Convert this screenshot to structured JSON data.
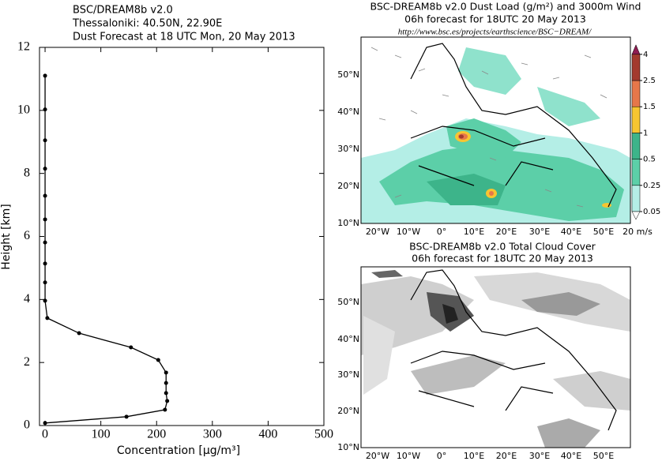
{
  "chart_data": [
    {
      "type": "line",
      "title": [
        "BSC/DREAM8b v2.0",
        "Thessaloniki: 40.50N, 22.90E",
        "Dust Forecast at 18 UTC Mon, 20 May 2013"
      ],
      "xlabel": "Concentration [μg/m³]",
      "ylabel": "Height [km]",
      "xlim": [
        -10,
        500
      ],
      "ylim": [
        0,
        12
      ],
      "xticks": [
        0,
        100,
        200,
        300,
        400,
        500
      ],
      "yticks": [
        0,
        2,
        4,
        6,
        8,
        10,
        12
      ],
      "series": [
        {
          "color": "#000000",
          "x": [
            0,
            146,
            215,
            219,
            217,
            217,
            217,
            203,
            154,
            61,
            4,
            0,
            0,
            0,
            0,
            0,
            0,
            0,
            0,
            0,
            0
          ],
          "values": [
            0.08,
            0.28,
            0.5,
            0.78,
            1.03,
            1.35,
            1.68,
            2.08,
            2.48,
            2.93,
            3.41,
            3.96,
            4.54,
            5.14,
            5.81,
            6.54,
            7.29,
            8.15,
            9.05,
            10.03,
            11.1
          ]
        }
      ]
    },
    {
      "type": "map",
      "title": [
        "BSC-DREAM8b v2.0 Dust Load (g/m²) and 3000m Wind",
        "06h forecast for 18UTC 20 May 2013"
      ],
      "url": "http://www.bsc.es/projects/earthscience/BSC−DREAM/",
      "lon_labels": [
        "20°W",
        "10°W",
        "0°",
        "10°E",
        "20°E",
        "30°E",
        "40°E",
        "50°E"
      ],
      "lat_labels": [
        "10°N",
        "20°N",
        "30°N",
        "40°N",
        "50°N"
      ],
      "levels": [
        0.05,
        0.25,
        0.5,
        1,
        1.5,
        2.5,
        4
      ],
      "colors": [
        "#b4eee6",
        "#5ccfa8",
        "#3db48a",
        "#f7c531",
        "#e6774a",
        "#a33a2e"
      ],
      "over_color": "#8e1c52",
      "under_color": "#ffffff",
      "wind_key": "20 m/s"
    },
    {
      "type": "map",
      "title": [
        "BSC-DREAM8b v2.0 Total Cloud Cover",
        "06h forecast for 18UTC 20 May 2013"
      ],
      "lon_labels": [
        "20°W",
        "10°W",
        "0°",
        "10°E",
        "20°E",
        "30°E",
        "40°E",
        "50°E"
      ],
      "lat_labels": [
        "10°N",
        "20°N",
        "30°N",
        "40°N",
        "50°N"
      ]
    }
  ]
}
